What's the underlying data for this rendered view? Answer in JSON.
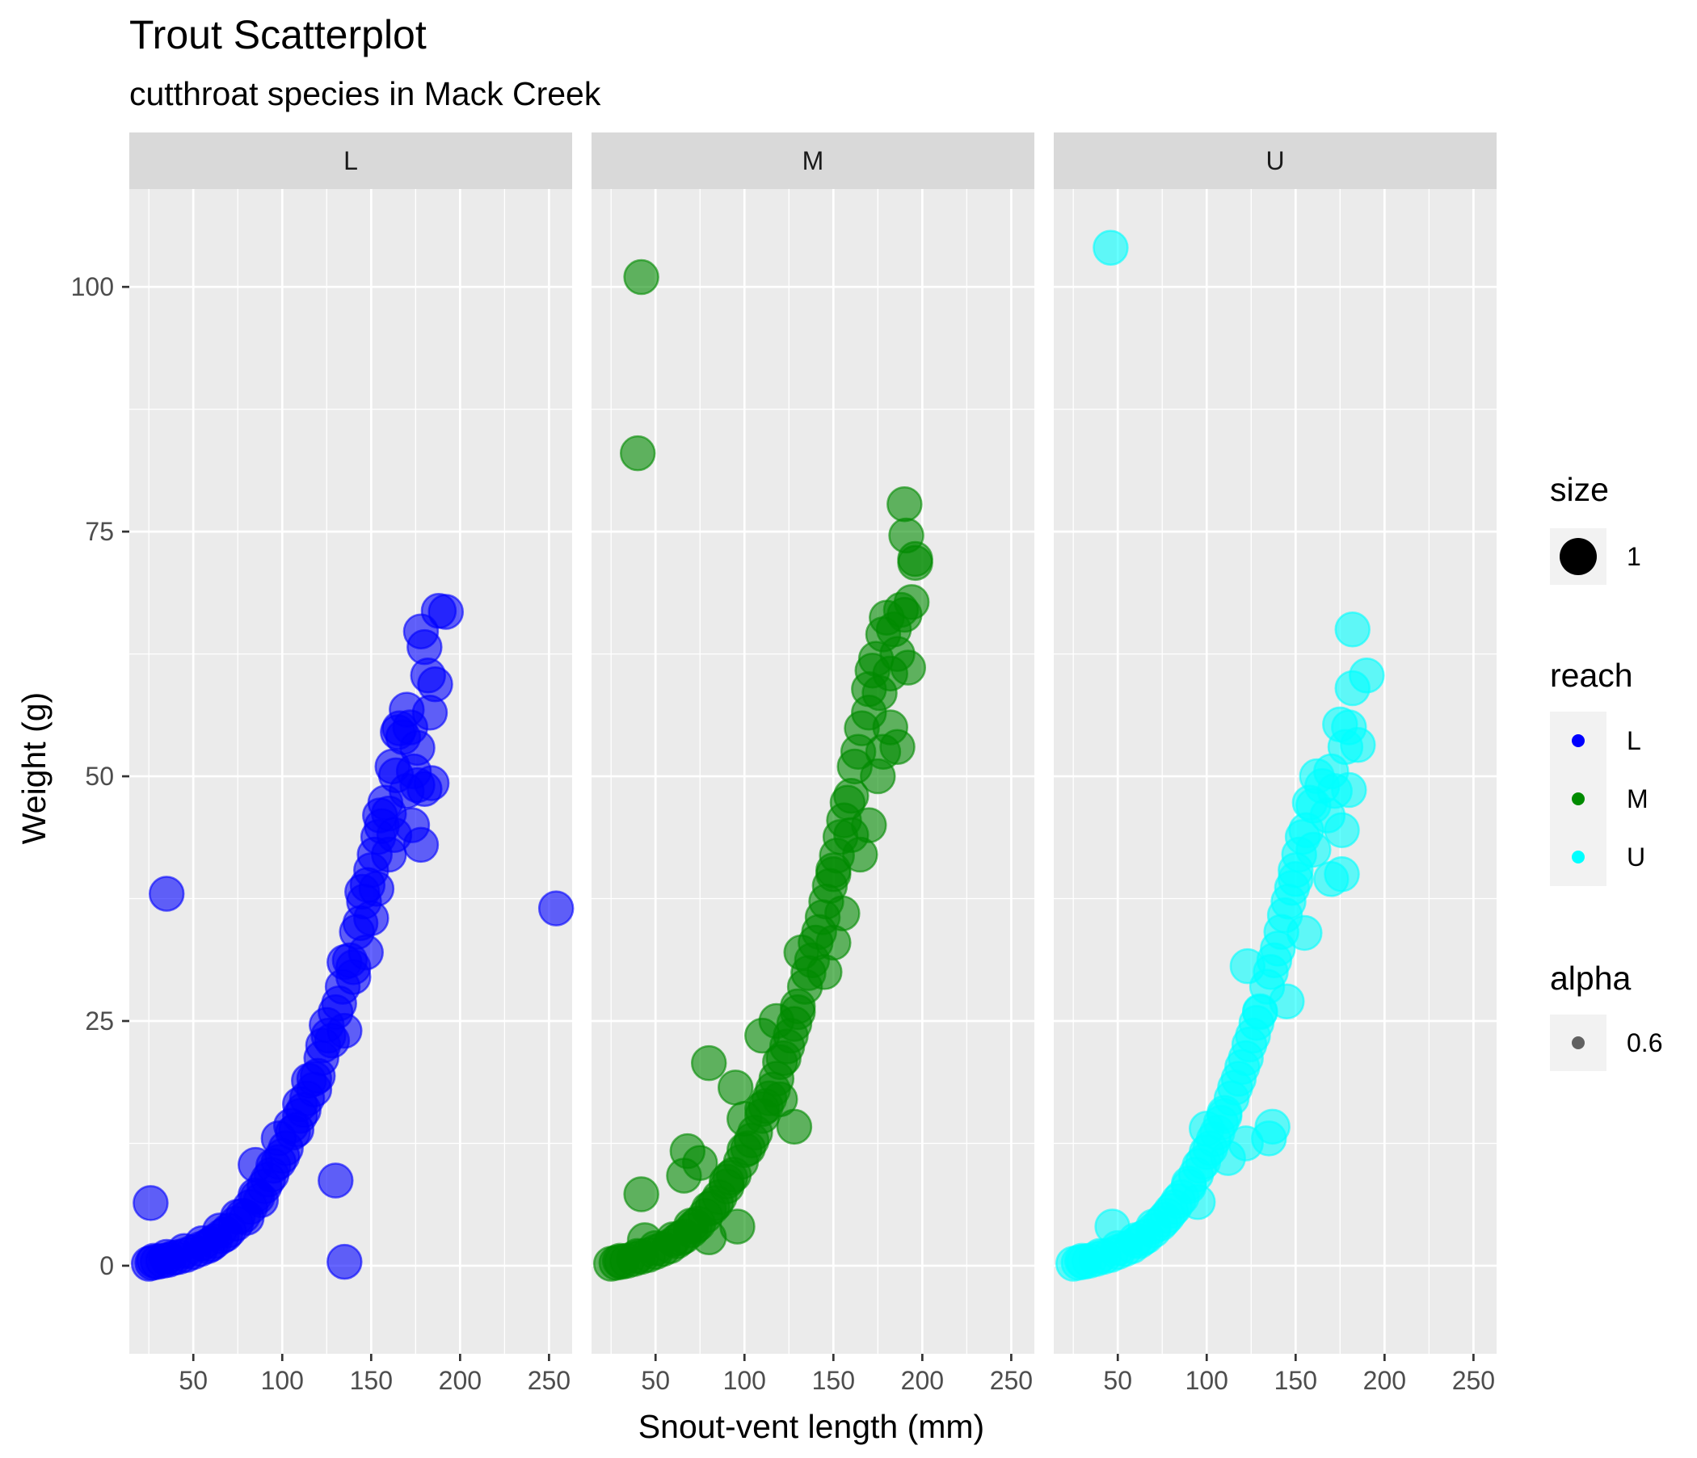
{
  "chart_data": {
    "type": "scatter",
    "title": "Trout Scatterplot",
    "subtitle": "cutthroat species in Mack Creek",
    "xlabel": "Snout-vent length (mm)",
    "ylabel": "Weight (g)",
    "xlim": [
      14,
      263
    ],
    "ylim": [
      -9,
      110
    ],
    "x_ticks": [
      50,
      100,
      150,
      200,
      250
    ],
    "x_tick_labels": [
      "50",
      "100",
      "150",
      "200",
      "250"
    ],
    "y_ticks": [
      0,
      25,
      50,
      75,
      100
    ],
    "y_tick_labels": [
      "0",
      "25",
      "50",
      "75",
      "100"
    ],
    "grid": true,
    "facet_by": "reach",
    "panel_background": "#ebebeb",
    "strip_background": "#d9d9d9",
    "marker_alpha": 0.6,
    "series": [
      {
        "name": "L",
        "color": "#0000ff",
        "points": [
          [
            25,
            0.2
          ],
          [
            27,
            0.3
          ],
          [
            30,
            0.4
          ],
          [
            33,
            0.5
          ],
          [
            36,
            0.6
          ],
          [
            39,
            0.8
          ],
          [
            42,
            0.9
          ],
          [
            46,
            1.1
          ],
          [
            50,
            1.4
          ],
          [
            54,
            1.7
          ],
          [
            58,
            2.0
          ],
          [
            62,
            2.5
          ],
          [
            66,
            3.0
          ],
          [
            70,
            3.6
          ],
          [
            74,
            4.3
          ],
          [
            78,
            5.1
          ],
          [
            82,
            6.0
          ],
          [
            86,
            7.0
          ],
          [
            90,
            8.1
          ],
          [
            94,
            9.3
          ],
          [
            98,
            10.6
          ],
          [
            102,
            12.0
          ],
          [
            106,
            13.6
          ],
          [
            110,
            15.3
          ],
          [
            114,
            17.1
          ],
          [
            118,
            19.1
          ],
          [
            122,
            21.2
          ],
          [
            126,
            23.5
          ],
          [
            130,
            25.9
          ],
          [
            134,
            28.5
          ],
          [
            138,
            31.2
          ],
          [
            142,
            34.1
          ],
          [
            146,
            37.2
          ],
          [
            150,
            40.4
          ],
          [
            154,
            43.8
          ],
          [
            158,
            47.3
          ],
          [
            162,
            51.0
          ],
          [
            166,
            54.9
          ],
          [
            28,
            0.5
          ],
          [
            35,
            0.9
          ],
          [
            45,
            1.5
          ],
          [
            55,
            2.3
          ],
          [
            65,
            3.6
          ],
          [
            75,
            5.0
          ],
          [
            85,
            7.2
          ],
          [
            95,
            10.2
          ],
          [
            105,
            14.3
          ],
          [
            115,
            18.9
          ],
          [
            125,
            24.6
          ],
          [
            135,
            31.0
          ],
          [
            145,
            38.2
          ],
          [
            155,
            46.0
          ],
          [
            165,
            54.5
          ],
          [
            60,
            2.2
          ],
          [
            68,
            3.2
          ],
          [
            80,
            4.9
          ],
          [
            88,
            6.7
          ],
          [
            92,
            8.8
          ],
          [
            100,
            11.2
          ],
          [
            108,
            13.9
          ],
          [
            112,
            15.9
          ],
          [
            120,
            19.4
          ],
          [
            128,
            23.0
          ],
          [
            132,
            26.8
          ],
          [
            140,
            30.5
          ],
          [
            144,
            35.0
          ],
          [
            148,
            38.9
          ],
          [
            152,
            42.0
          ],
          [
            156,
            44.9
          ],
          [
            160,
            46.2
          ],
          [
            164,
            50.1
          ],
          [
            168,
            54.0
          ],
          [
            170,
            56.8
          ],
          [
            172,
            55.0
          ],
          [
            174,
            50.5
          ],
          [
            176,
            52.9
          ],
          [
            170,
            48.5
          ],
          [
            173,
            45.0
          ],
          [
            178,
            43.0
          ],
          [
            180,
            48.7
          ],
          [
            183,
            56.5
          ],
          [
            186,
            59.4
          ],
          [
            182,
            60.3
          ],
          [
            180,
            63.2
          ],
          [
            178,
            64.8
          ],
          [
            188,
            66.9
          ],
          [
            192,
            66.8
          ],
          [
            176,
            49.1
          ],
          [
            184,
            49.3
          ],
          [
            35,
            38.0
          ],
          [
            254,
            36.5
          ],
          [
            26,
            6.4
          ],
          [
            135,
            0.4
          ],
          [
            130,
            8.7
          ],
          [
            85,
            10.3
          ],
          [
            140,
            29.5
          ],
          [
            135,
            24.0
          ],
          [
            150,
            35.5
          ],
          [
            160,
            42.0
          ],
          [
            118,
            18.0
          ],
          [
            123,
            22.5
          ],
          [
            98,
            13.0
          ],
          [
            110,
            16.5
          ],
          [
            147,
            32.0
          ],
          [
            153,
            38.5
          ],
          [
            163,
            44.0
          ]
        ]
      },
      {
        "name": "M",
        "color": "#008b00",
        "points": [
          [
            25,
            0.2
          ],
          [
            28,
            0.3
          ],
          [
            31,
            0.4
          ],
          [
            34,
            0.5
          ],
          [
            38,
            0.7
          ],
          [
            42,
            0.9
          ],
          [
            46,
            1.1
          ],
          [
            50,
            1.4
          ],
          [
            54,
            1.7
          ],
          [
            58,
            2.0
          ],
          [
            62,
            2.5
          ],
          [
            66,
            3.0
          ],
          [
            70,
            3.6
          ],
          [
            74,
            4.3
          ],
          [
            78,
            5.1
          ],
          [
            82,
            6.0
          ],
          [
            86,
            7.0
          ],
          [
            90,
            8.1
          ],
          [
            94,
            9.3
          ],
          [
            98,
            10.6
          ],
          [
            102,
            12.0
          ],
          [
            106,
            13.6
          ],
          [
            110,
            15.3
          ],
          [
            114,
            17.1
          ],
          [
            118,
            19.1
          ],
          [
            122,
            21.2
          ],
          [
            126,
            23.5
          ],
          [
            130,
            25.9
          ],
          [
            134,
            28.5
          ],
          [
            138,
            31.2
          ],
          [
            142,
            34.1
          ],
          [
            146,
            37.2
          ],
          [
            150,
            40.4
          ],
          [
            154,
            43.8
          ],
          [
            158,
            47.3
          ],
          [
            162,
            51.0
          ],
          [
            166,
            54.9
          ],
          [
            170,
            58.9
          ],
          [
            30,
            0.5
          ],
          [
            40,
            1.0
          ],
          [
            50,
            1.8
          ],
          [
            60,
            2.7
          ],
          [
            70,
            4.1
          ],
          [
            80,
            5.8
          ],
          [
            90,
            8.6
          ],
          [
            100,
            11.8
          ],
          [
            110,
            16.0
          ],
          [
            120,
            20.8
          ],
          [
            130,
            26.5
          ],
          [
            140,
            33.0
          ],
          [
            150,
            40.0
          ],
          [
            160,
            48.0
          ],
          [
            170,
            56.5
          ],
          [
            64,
            2.8
          ],
          [
            72,
            4.0
          ],
          [
            84,
            6.4
          ],
          [
            92,
            9.0
          ],
          [
            104,
            12.8
          ],
          [
            112,
            16.3
          ],
          [
            116,
            18.0
          ],
          [
            124,
            22.4
          ],
          [
            128,
            24.7
          ],
          [
            136,
            29.9
          ],
          [
            144,
            35.6
          ],
          [
            148,
            38.8
          ],
          [
            152,
            41.9
          ],
          [
            156,
            45.5
          ],
          [
            164,
            52.5
          ],
          [
            172,
            60.8
          ],
          [
            174,
            62.0
          ],
          [
            176,
            58.5
          ],
          [
            178,
            64.5
          ],
          [
            180,
            66.2
          ],
          [
            182,
            60.5
          ],
          [
            184,
            65.0
          ],
          [
            186,
            62.5
          ],
          [
            188,
            67.0
          ],
          [
            190,
            66.5
          ],
          [
            192,
            61.1
          ],
          [
            194,
            67.8
          ],
          [
            186,
            53.0
          ],
          [
            182,
            55.0
          ],
          [
            175,
            50.0
          ],
          [
            178,
            52.5
          ],
          [
            170,
            45.0
          ],
          [
            165,
            42.0
          ],
          [
            160,
            44.0
          ],
          [
            155,
            36.0
          ],
          [
            150,
            33.0
          ],
          [
            145,
            30.0
          ],
          [
            190,
            77.8
          ],
          [
            191,
            74.6
          ],
          [
            196,
            71.8
          ],
          [
            196,
            72.2
          ],
          [
            42,
            101.0
          ],
          [
            40,
            83.0
          ],
          [
            80,
            20.7
          ],
          [
            95,
            18.2
          ],
          [
            110,
            23.5
          ],
          [
            128,
            14.2
          ],
          [
            68,
            11.7
          ],
          [
            42,
            7.3
          ],
          [
            75,
            10.5
          ],
          [
            66,
            9.2
          ],
          [
            96,
            4.0
          ],
          [
            80,
            2.9
          ],
          [
            44,
            2.6
          ],
          [
            100,
            15.0
          ],
          [
            120,
            17.0
          ],
          [
            118,
            25.0
          ],
          [
            132,
            32.0
          ]
        ]
      },
      {
        "name": "U",
        "color": "#00ffff",
        "points": [
          [
            25,
            0.2
          ],
          [
            28,
            0.3
          ],
          [
            31,
            0.4
          ],
          [
            34,
            0.5
          ],
          [
            38,
            0.7
          ],
          [
            42,
            0.9
          ],
          [
            46,
            1.1
          ],
          [
            50,
            1.4
          ],
          [
            54,
            1.7
          ],
          [
            58,
            2.0
          ],
          [
            62,
            2.5
          ],
          [
            66,
            3.0
          ],
          [
            70,
            3.6
          ],
          [
            74,
            4.3
          ],
          [
            78,
            5.1
          ],
          [
            82,
            6.0
          ],
          [
            86,
            7.0
          ],
          [
            90,
            8.1
          ],
          [
            94,
            9.3
          ],
          [
            98,
            10.6
          ],
          [
            102,
            12.0
          ],
          [
            106,
            13.6
          ],
          [
            110,
            15.3
          ],
          [
            114,
            17.1
          ],
          [
            118,
            19.1
          ],
          [
            122,
            21.2
          ],
          [
            126,
            23.5
          ],
          [
            130,
            25.9
          ],
          [
            134,
            28.5
          ],
          [
            138,
            31.2
          ],
          [
            142,
            34.1
          ],
          [
            146,
            37.2
          ],
          [
            150,
            40.4
          ],
          [
            154,
            43.8
          ],
          [
            158,
            47.3
          ],
          [
            162,
            50.0
          ],
          [
            30,
            0.5
          ],
          [
            40,
            1.0
          ],
          [
            50,
            1.8
          ],
          [
            60,
            2.6
          ],
          [
            70,
            4.0
          ],
          [
            80,
            5.6
          ],
          [
            90,
            8.4
          ],
          [
            100,
            11.6
          ],
          [
            110,
            15.6
          ],
          [
            120,
            20.3
          ],
          [
            130,
            26.0
          ],
          [
            140,
            32.4
          ],
          [
            150,
            39.5
          ],
          [
            160,
            47.0
          ],
          [
            64,
            2.8
          ],
          [
            76,
            4.7
          ],
          [
            84,
            6.6
          ],
          [
            96,
            10.2
          ],
          [
            104,
            12.9
          ],
          [
            108,
            14.6
          ],
          [
            116,
            18.2
          ],
          [
            124,
            22.6
          ],
          [
            128,
            24.8
          ],
          [
            136,
            30.0
          ],
          [
            144,
            35.8
          ],
          [
            148,
            38.6
          ],
          [
            152,
            42.0
          ],
          [
            156,
            44.5
          ],
          [
            165,
            49.0
          ],
          [
            170,
            50.5
          ],
          [
            175,
            55.3
          ],
          [
            178,
            53.0
          ],
          [
            180,
            55.0
          ],
          [
            182,
            59.0
          ],
          [
            185,
            53.2
          ],
          [
            190,
            60.3
          ],
          [
            182,
            65.0
          ],
          [
            172,
            48.5
          ],
          [
            176,
            44.5
          ],
          [
            180,
            48.6
          ],
          [
            168,
            46.0
          ],
          [
            176,
            40.0
          ],
          [
            170,
            39.5
          ],
          [
            46,
            104.0
          ],
          [
            47,
            4.0
          ],
          [
            123,
            30.6
          ],
          [
            137,
            14.2
          ],
          [
            135,
            13.0
          ],
          [
            122,
            12.5
          ],
          [
            112,
            11.0
          ],
          [
            100,
            14.0
          ],
          [
            95,
            6.5
          ],
          [
            145,
            27.0
          ],
          [
            155,
            34.0
          ],
          [
            160,
            42.5
          ]
        ]
      }
    ],
    "legends": [
      {
        "title": "size",
        "entries": [
          {
            "label": "1",
            "color": "#000000"
          }
        ]
      },
      {
        "title": "reach",
        "entries": [
          {
            "label": "L",
            "color": "#0000ff"
          },
          {
            "label": "M",
            "color": "#008b00"
          },
          {
            "label": "U",
            "color": "#00ffff"
          }
        ]
      },
      {
        "title": "alpha",
        "entries": [
          {
            "label": "0.6",
            "color": "#000000"
          }
        ]
      }
    ],
    "legend_position": "right"
  }
}
